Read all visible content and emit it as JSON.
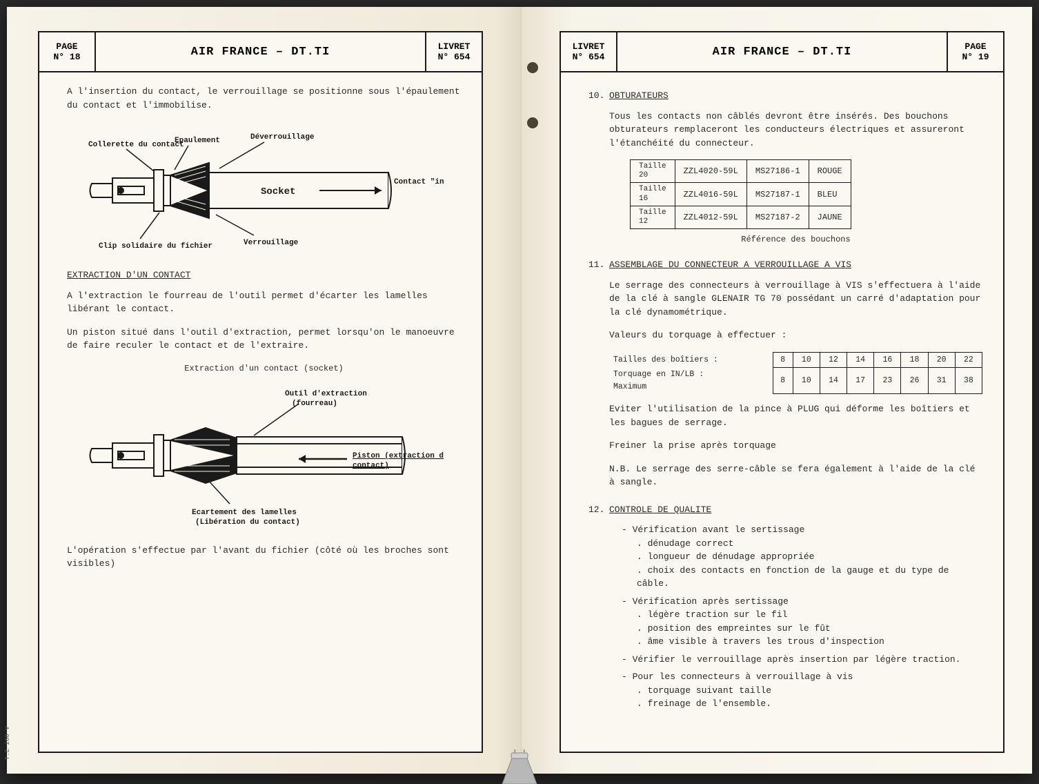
{
  "colors": {
    "paper": "#faf8f1",
    "ink": "#1a1a1a",
    "text": "#2a2a2a",
    "hole": "#4a4335",
    "book_bg": "#f8f6f0"
  },
  "left": {
    "page_label": "PAGE",
    "page_num": "N° 18",
    "title": "AIR FRANCE – DT.TI",
    "livret_label": "LIVRET",
    "livret_num": "N° 654",
    "intro": "A l'insertion du contact, le verrouillage se positionne sous l'épaulement du contact et l'immobilise.",
    "diag1": {
      "labels": {
        "collerette": "Collerette du contact",
        "epaulement": "Epaulement",
        "deverrouillage": "Déverrouillage",
        "socket": "Socket",
        "contact_insere": "Contact \"inséré\"",
        "clip": "Clip solidaire du fichier",
        "verrouillage": "Verrouillage"
      }
    },
    "sec_extraction_title": "EXTRACTION D'UN CONTACT",
    "sec_extraction_p1": "A l'extraction le fourreau de l'outil permet d'écarter les lamelles libérant le contact.",
    "sec_extraction_p2": "Un piston situé dans l'outil d'extraction, permet lorsqu'on le manoeuvre de faire reculer le contact et de l'extraire.",
    "diag2_caption": "Extraction d'un contact (socket)",
    "diag2": {
      "labels": {
        "outil": "Outil d'extraction",
        "fourreau": "(fourreau)",
        "piston_l1": "Piston (extraction du",
        "piston_l2": "contact)",
        "ecart_l1": "Ecartement des lamelles",
        "ecart_l2": "(Libération du contact)"
      }
    },
    "closing": "L'opération s'effectue par l'avant du fichier (côté où les broches sont visibles)",
    "footer_code": "T.E 260 V"
  },
  "right": {
    "page_label": "PAGE",
    "page_num": "N° 19",
    "title": "AIR FRANCE – DT.TI",
    "livret_label": "LIVRET",
    "livret_num": "N° 654",
    "s10": {
      "num": "10.",
      "title": "OBTURATEURS",
      "para": "Tous les contacts non câblés devront être insérés. Des bouchons obturateurs remplaceront les conducteurs électriques et assureront l'étanchéité du connecteur.",
      "table": {
        "rows": [
          {
            "size_l1": "Taille",
            "size_l2": "20",
            "ref1": "ZZL4020-59L",
            "ref2": "MS27186-1",
            "color": "ROUGE"
          },
          {
            "size_l1": "Taille",
            "size_l2": "16",
            "ref1": "ZZL4016-59L",
            "ref2": "MS27187-1",
            "color": "BLEU"
          },
          {
            "size_l1": "Taille",
            "size_l2": "12",
            "ref1": "ZZL4012-59L",
            "ref2": "MS27187-2",
            "color": "JAUNE"
          }
        ],
        "caption": "Référence des bouchons"
      }
    },
    "s11": {
      "num": "11.",
      "title": "ASSEMBLAGE DU CONNECTEUR A VERROUILLAGE A VIS",
      "p1": "Le serrage des connecteurs à verrouillage à VIS s'effectuera à l'aide de la clé à sangle GLENAIR TG 70 possédant un carré d'adaptation pour la clé dynamométrique.",
      "p2": "Valeurs du torquage à effectuer :",
      "torque": {
        "row1_label": "Tailles des boîtiers :",
        "row2_label_l1": "Torquage en IN/LB  :",
        "row2_label_l2": "Maximum",
        "sizes": [
          "8",
          "10",
          "12",
          "14",
          "16",
          "18",
          "20",
          "22"
        ],
        "values": [
          "8",
          "10",
          "14",
          "17",
          "23",
          "26",
          "31",
          "38"
        ]
      },
      "p3": "Eviter l'utilisation de la pince à PLUG qui déforme les boîtiers et les bagues de serrage.",
      "p4": "Freiner la prise après torquage",
      "p5": "N.B. Le serrage des serre-câble se fera également à l'aide de la clé à sangle."
    },
    "s12": {
      "num": "12.",
      "title": "CONTROLE DE QUALITE",
      "g1": {
        "head": "- Vérification avant le sertissage",
        "items": [
          ". dénudage correct",
          ". longueur de dénudage appropriée",
          ". choix des contacts en fonction de la gauge et du type de câble."
        ]
      },
      "g2": {
        "head": "- Vérification après sertissage",
        "items": [
          ". légère traction sur le fil",
          ". position des empreintes sur le fût",
          ". âme visible à travers les trous d'inspection"
        ]
      },
      "g3": "- Vérifier le verrouillage après insertion par légère traction.",
      "g4": {
        "head": "- Pour les connecteurs à verrouillage à vis",
        "items": [
          ". torquage suivant taille",
          ". freinage de l'ensemble."
        ]
      }
    }
  }
}
